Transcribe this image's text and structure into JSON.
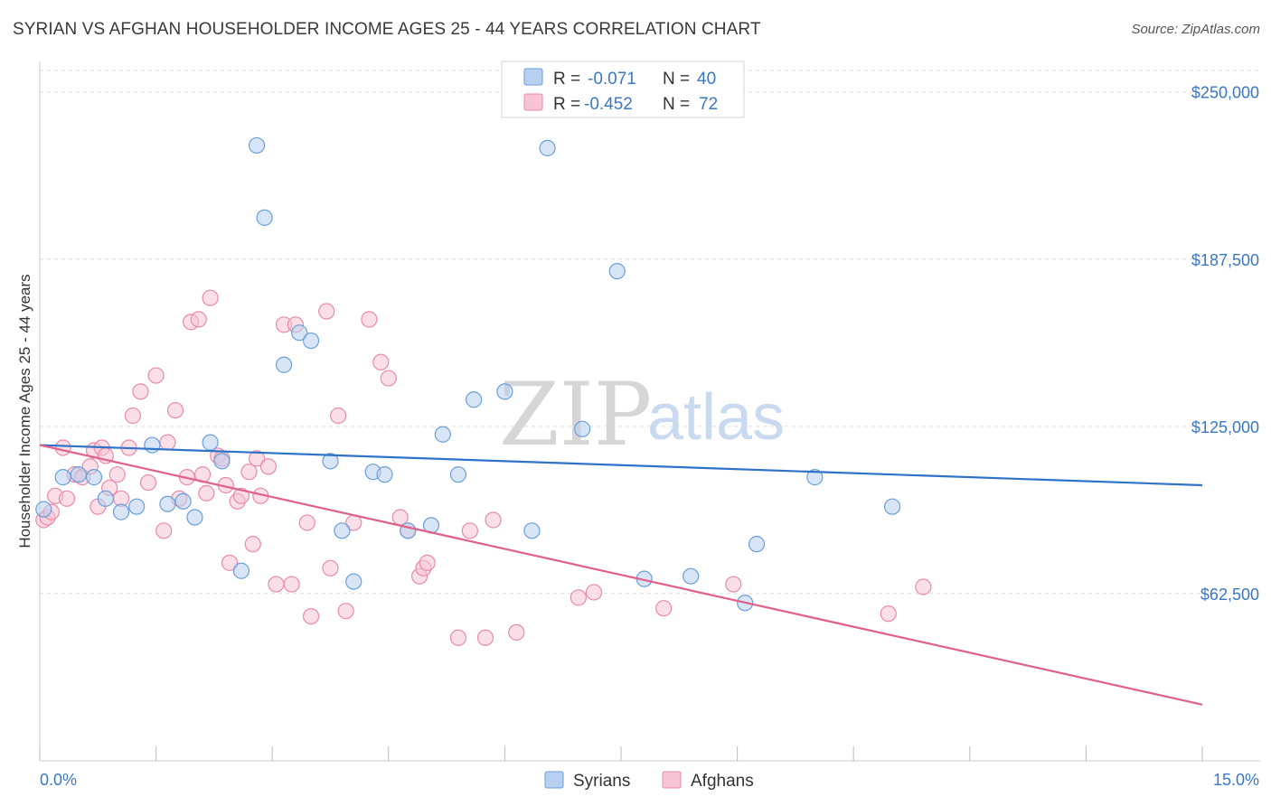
{
  "header": {
    "title": "SYRIAN VS AFGHAN HOUSEHOLDER INCOME AGES 25 - 44 YEARS CORRELATION CHART",
    "source": "Source: ZipAtlas.com"
  },
  "watermark": {
    "zip": "ZIP",
    "atlas": "atlas"
  },
  "colors": {
    "syrians": "#6a9fd8",
    "syrians_fill": "#b8d0ef",
    "syrians_line": "#2f72c9",
    "afghans": "#e98ba9",
    "afghans_fill": "#f6c4d4",
    "afghans_line": "#e0608c",
    "tick_text": "#3b78c4",
    "grid": "#dddddd"
  },
  "legend_stats": [
    {
      "r_label": "R =",
      "r_value": "-0.071",
      "n_label": "N =",
      "n_value": "40"
    },
    {
      "r_label": "R =",
      "r_value": "-0.452",
      "n_label": "N =",
      "n_value": "72"
    }
  ],
  "chart_data": {
    "type": "scatter",
    "title": "SYRIAN VS AFGHAN HOUSEHOLDER INCOME AGES 25 - 44 YEARS CORRELATION CHART",
    "xlabel": "",
    "ylabel": "Householder Income Ages 25 - 44 years",
    "xlim": [
      0,
      15
    ],
    "ylim": [
      0,
      258000
    ],
    "x_tick_labels": [
      "0.0%",
      "15.0%"
    ],
    "y_ticks": [
      62500,
      125000,
      187500,
      250000
    ],
    "y_tick_labels": [
      "$62,500",
      "$125,000",
      "$187,500",
      "$250,000"
    ],
    "grid": true,
    "legend_position": "bottom-center",
    "series": [
      {
        "name": "Syrians",
        "r": -0.071,
        "n": 40,
        "trend": {
          "x": [
            0,
            15
          ],
          "y": [
            118000,
            103000
          ]
        },
        "points": [
          [
            0.05,
            94000
          ],
          [
            0.3,
            106000
          ],
          [
            0.5,
            107000
          ],
          [
            0.7,
            106000
          ],
          [
            0.85,
            98000
          ],
          [
            1.05,
            93000
          ],
          [
            1.25,
            95000
          ],
          [
            1.45,
            118000
          ],
          [
            1.65,
            96000
          ],
          [
            1.85,
            97000
          ],
          [
            2.0,
            91000
          ],
          [
            2.2,
            119000
          ],
          [
            2.35,
            112000
          ],
          [
            2.6,
            71000
          ],
          [
            2.8,
            230000
          ],
          [
            2.9,
            203000
          ],
          [
            3.15,
            148000
          ],
          [
            3.35,
            160000
          ],
          [
            3.5,
            157000
          ],
          [
            3.75,
            112000
          ],
          [
            3.9,
            86000
          ],
          [
            4.05,
            67000
          ],
          [
            4.3,
            108000
          ],
          [
            4.45,
            107000
          ],
          [
            4.75,
            86000
          ],
          [
            5.05,
            88000
          ],
          [
            5.2,
            122000
          ],
          [
            5.4,
            107000
          ],
          [
            5.6,
            135000
          ],
          [
            6.0,
            138000
          ],
          [
            6.35,
            86000
          ],
          [
            6.55,
            229000
          ],
          [
            7.0,
            124000
          ],
          [
            7.45,
            183000
          ],
          [
            7.8,
            68000
          ],
          [
            8.4,
            69000
          ],
          [
            9.1,
            59000
          ],
          [
            9.25,
            81000
          ],
          [
            10.0,
            106000
          ],
          [
            11.0,
            95000
          ]
        ]
      },
      {
        "name": "Afghans",
        "r": -0.452,
        "n": 72,
        "trend": {
          "x": [
            0,
            15
          ],
          "y": [
            118000,
            21000
          ]
        },
        "points": [
          [
            0.05,
            90000
          ],
          [
            0.1,
            91000
          ],
          [
            0.2,
            99000
          ],
          [
            0.3,
            117000
          ],
          [
            0.35,
            98000
          ],
          [
            0.45,
            107000
          ],
          [
            0.55,
            106000
          ],
          [
            0.65,
            110000
          ],
          [
            0.7,
            116000
          ],
          [
            0.75,
            95000
          ],
          [
            0.8,
            117000
          ],
          [
            0.85,
            114000
          ],
          [
            0.9,
            102000
          ],
          [
            1.0,
            107000
          ],
          [
            1.05,
            98000
          ],
          [
            1.15,
            117000
          ],
          [
            1.2,
            129000
          ],
          [
            1.3,
            138000
          ],
          [
            1.4,
            104000
          ],
          [
            1.5,
            144000
          ],
          [
            1.6,
            86000
          ],
          [
            1.65,
            119000
          ],
          [
            1.75,
            131000
          ],
          [
            1.8,
            98000
          ],
          [
            1.9,
            106000
          ],
          [
            1.95,
            164000
          ],
          [
            2.05,
            165000
          ],
          [
            2.1,
            107000
          ],
          [
            2.15,
            100000
          ],
          [
            2.2,
            173000
          ],
          [
            2.3,
            114000
          ],
          [
            2.35,
            113000
          ],
          [
            2.4,
            103000
          ],
          [
            2.45,
            74000
          ],
          [
            2.55,
            97000
          ],
          [
            2.6,
            99000
          ],
          [
            2.7,
            108000
          ],
          [
            2.75,
            81000
          ],
          [
            2.8,
            113000
          ],
          [
            2.85,
            99000
          ],
          [
            2.95,
            110000
          ],
          [
            3.05,
            66000
          ],
          [
            3.15,
            163000
          ],
          [
            3.25,
            66000
          ],
          [
            3.3,
            163000
          ],
          [
            3.45,
            89000
          ],
          [
            3.5,
            54000
          ],
          [
            3.7,
            168000
          ],
          [
            3.75,
            72000
          ],
          [
            3.85,
            129000
          ],
          [
            3.95,
            56000
          ],
          [
            4.05,
            89000
          ],
          [
            4.25,
            165000
          ],
          [
            4.4,
            149000
          ],
          [
            4.5,
            143000
          ],
          [
            4.65,
            91000
          ],
          [
            4.75,
            86000
          ],
          [
            4.9,
            69000
          ],
          [
            4.95,
            72000
          ],
          [
            5.0,
            74000
          ],
          [
            5.4,
            46000
          ],
          [
            5.55,
            86000
          ],
          [
            5.75,
            46000
          ],
          [
            5.85,
            90000
          ],
          [
            6.15,
            48000
          ],
          [
            6.95,
            61000
          ],
          [
            7.15,
            63000
          ],
          [
            8.05,
            57000
          ],
          [
            8.95,
            66000
          ],
          [
            10.95,
            55000
          ],
          [
            11.4,
            65000
          ],
          [
            0.15,
            93000
          ]
        ]
      }
    ]
  }
}
